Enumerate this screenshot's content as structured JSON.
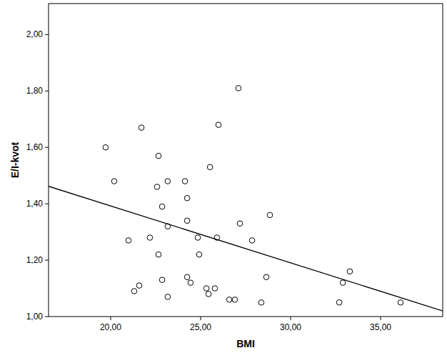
{
  "chart_data": {
    "type": "scatter",
    "x_label": "BMI",
    "y_label": "E/I-kvot",
    "xlim": [
      16.55,
      38.45
    ],
    "ylim": [
      1.0,
      2.11
    ],
    "xticks": [
      {
        "value": 20,
        "label": "20,00"
      },
      {
        "value": 25,
        "label": "25,00"
      },
      {
        "value": 30,
        "label": "30,00"
      },
      {
        "value": 35,
        "label": "35,00"
      }
    ],
    "yticks": [
      {
        "value": 1.0,
        "label": "1,00"
      },
      {
        "value": 1.2,
        "label": "1,20"
      },
      {
        "value": 1.4,
        "label": "1,40"
      },
      {
        "value": 1.6,
        "label": "1,60"
      },
      {
        "value": 1.8,
        "label": "1,80"
      },
      {
        "value": 2.0,
        "label": "2,00"
      }
    ],
    "grid": false,
    "series": [
      {
        "type": "scatter",
        "marker": "circle",
        "color": "#000000",
        "x": [
          19.72,
          20.2,
          20.99,
          21.31,
          21.59,
          21.71,
          22.18,
          22.58,
          22.66,
          22.66,
          22.86,
          22.86,
          23.17,
          23.17,
          23.17,
          24.13,
          24.25,
          24.25,
          24.25,
          24.44,
          24.84,
          24.92,
          25.32,
          25.44,
          25.52,
          25.79,
          25.91,
          25.99,
          26.59,
          26.9,
          27.1,
          27.18,
          27.86,
          28.37,
          28.65,
          28.85,
          32.7,
          32.9,
          33.29,
          36.11
        ],
        "values": [
          1.6,
          1.48,
          1.27,
          1.09,
          1.11,
          1.67,
          1.28,
          1.46,
          1.57,
          1.22,
          1.39,
          1.13,
          1.48,
          1.32,
          1.07,
          1.48,
          1.42,
          1.34,
          1.14,
          1.12,
          1.28,
          1.22,
          1.1,
          1.08,
          1.53,
          1.1,
          1.28,
          1.68,
          1.06,
          1.06,
          1.81,
          1.33,
          1.27,
          1.05,
          1.14,
          1.36,
          1.05,
          1.12,
          1.16,
          1.05
        ]
      },
      {
        "type": "line",
        "line_style": "solid",
        "color": "#000000",
        "x": [
          16.55,
          38.45
        ],
        "values": [
          1.462,
          1.02
        ]
      }
    ]
  }
}
